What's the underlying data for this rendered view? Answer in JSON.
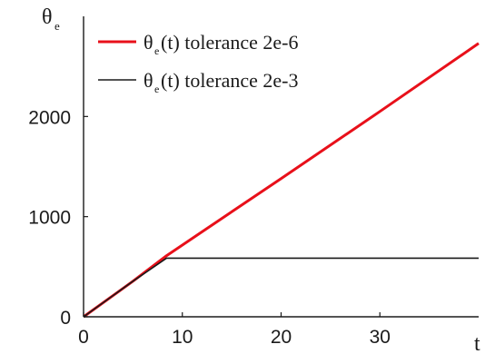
{
  "chart_data": {
    "type": "line",
    "xlabel": {
      "base": "t",
      "sub": ""
    },
    "ylabel": {
      "base": "θ",
      "sub": "e"
    },
    "xlim": [
      0,
      40
    ],
    "ylim": [
      0,
      3000
    ],
    "xticks": [
      0,
      10,
      20,
      30
    ],
    "yticks": [
      0,
      1000,
      2000
    ],
    "legend_position": "top-left",
    "grid": false,
    "series": [
      {
        "name": {
          "base": "θ",
          "sub": "e",
          "rest": "(t) tolerance 2e-6"
        },
        "color": "#e8101a",
        "x": [
          0,
          5,
          8.4,
          20,
          30,
          40
        ],
        "y": [
          0,
          355,
          610,
          1380,
          2050,
          2730
        ]
      },
      {
        "name": {
          "base": "θ",
          "sub": "e",
          "rest": "(t) tolerance 2e-3"
        },
        "color": "#1a1a1a",
        "x": [
          0,
          5,
          8.4,
          20,
          30,
          40
        ],
        "y": [
          0,
          355,
          585,
          585,
          585,
          585
        ]
      }
    ]
  }
}
